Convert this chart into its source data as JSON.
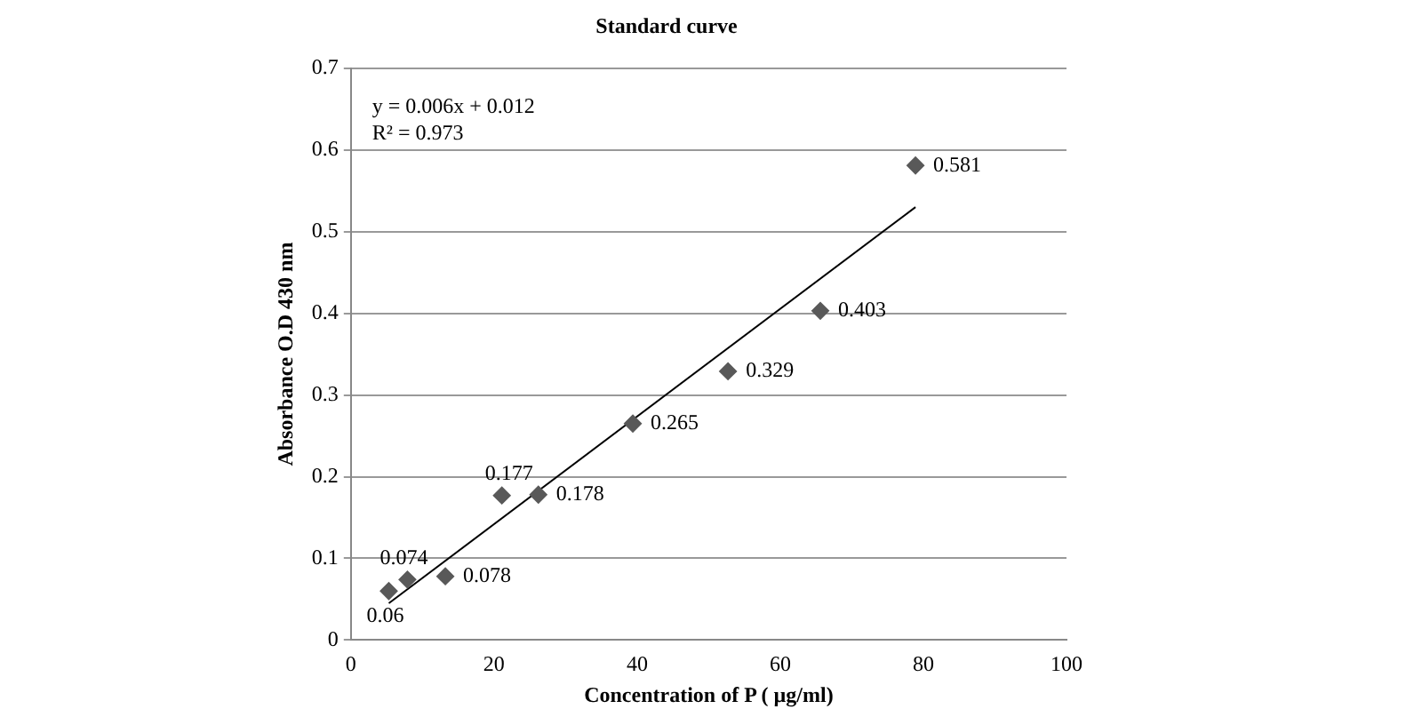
{
  "chart_data": {
    "type": "scatter",
    "title": "Standard curve",
    "xlabel": "Concentration of P ( µg/ml)",
    "ylabel": "Absorbance O.D 430 nm",
    "xlim": [
      0,
      100
    ],
    "xticks": [
      0,
      20,
      40,
      60,
      80,
      100
    ],
    "ylim": [
      0,
      0.7
    ],
    "yticks": [
      0,
      0.1,
      0.2,
      0.3,
      0.4,
      0.5,
      0.6,
      0.7
    ],
    "grid": "y",
    "legend": false,
    "annotations": [
      "y = 0.006x + 0.012",
      "R² = 0.973"
    ],
    "series": [
      {
        "type": "scatter",
        "marker": "diamond",
        "color": "#595959",
        "value_labels": [
          "0.06",
          "0.074",
          "0.078",
          "0.177",
          "0.178",
          "0.265",
          "0.329",
          "0.403",
          "0.581"
        ],
        "x": [
          5.3,
          7.9,
          13.2,
          21.1,
          26.2,
          39.4,
          52.7,
          65.6,
          78.9
        ],
        "values": [
          0.06,
          0.074,
          0.078,
          0.177,
          0.178,
          0.265,
          0.329,
          0.403,
          0.581
        ]
      },
      {
        "type": "line",
        "marker": "none",
        "color": "#000000",
        "x": [
          5.3,
          78.9
        ],
        "values": [
          0.045,
          0.53
        ]
      }
    ]
  }
}
